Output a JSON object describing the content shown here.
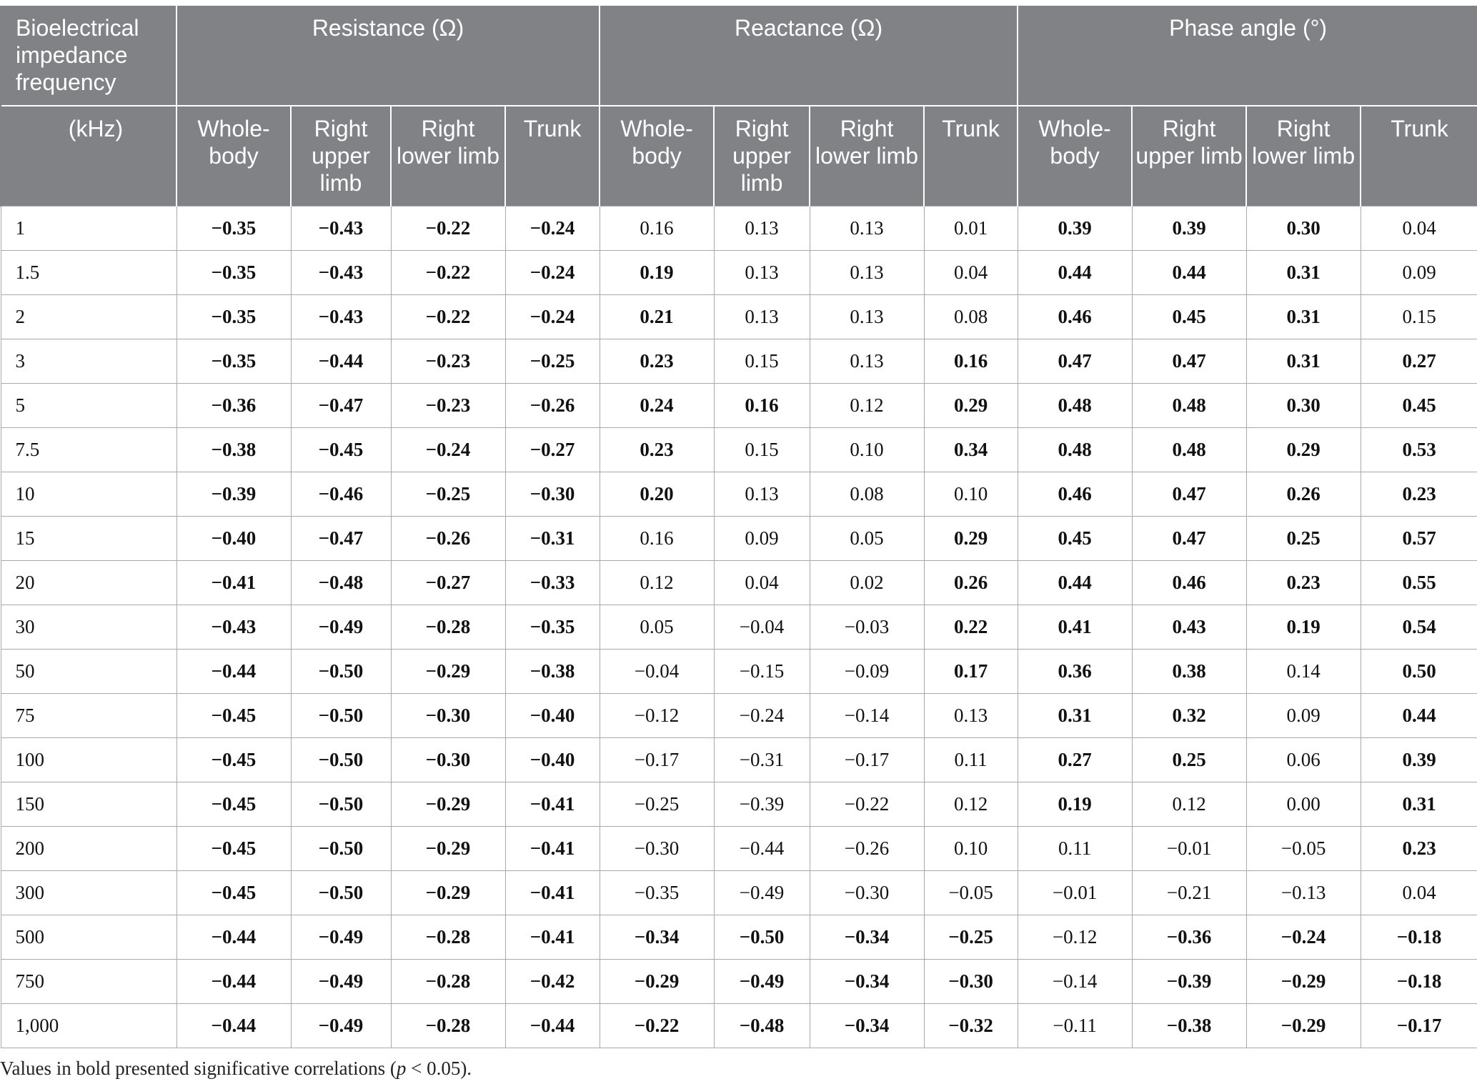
{
  "header": {
    "row_label": "Bioelectrical impedance frequency",
    "unit_label": "(kHz)",
    "groups": [
      "Resistance (Ω)",
      "Reactance (Ω)",
      "Phase angle (°)"
    ],
    "subcolumns": [
      "Whole-body",
      "Right upper limb",
      "Right lower limb",
      "Trunk"
    ]
  },
  "rows": [
    {
      "freq": "1",
      "values": [
        "−0.35",
        "−0.43",
        "−0.22",
        "−0.24",
        "0.16",
        "0.13",
        "0.13",
        "0.01",
        "0.39",
        "0.39",
        "0.30",
        "0.04"
      ],
      "bold": [
        1,
        1,
        1,
        1,
        0,
        0,
        0,
        0,
        1,
        1,
        1,
        0
      ]
    },
    {
      "freq": "1.5",
      "values": [
        "−0.35",
        "−0.43",
        "−0.22",
        "−0.24",
        "0.19",
        "0.13",
        "0.13",
        "0.04",
        "0.44",
        "0.44",
        "0.31",
        "0.09"
      ],
      "bold": [
        1,
        1,
        1,
        1,
        1,
        0,
        0,
        0,
        1,
        1,
        1,
        0
      ]
    },
    {
      "freq": "2",
      "values": [
        "−0.35",
        "−0.43",
        "−0.22",
        "−0.24",
        "0.21",
        "0.13",
        "0.13",
        "0.08",
        "0.46",
        "0.45",
        "0.31",
        "0.15"
      ],
      "bold": [
        1,
        1,
        1,
        1,
        1,
        0,
        0,
        0,
        1,
        1,
        1,
        0
      ]
    },
    {
      "freq": "3",
      "values": [
        "−0.35",
        "−0.44",
        "−0.23",
        "−0.25",
        "0.23",
        "0.15",
        "0.13",
        "0.16",
        "0.47",
        "0.47",
        "0.31",
        "0.27"
      ],
      "bold": [
        1,
        1,
        1,
        1,
        1,
        0,
        0,
        1,
        1,
        1,
        1,
        1
      ]
    },
    {
      "freq": "5",
      "values": [
        "−0.36",
        "−0.47",
        "−0.23",
        "−0.26",
        "0.24",
        "0.16",
        "0.12",
        "0.29",
        "0.48",
        "0.48",
        "0.30",
        "0.45"
      ],
      "bold": [
        1,
        1,
        1,
        1,
        1,
        1,
        0,
        1,
        1,
        1,
        1,
        1
      ]
    },
    {
      "freq": "7.5",
      "values": [
        "−0.38",
        "−0.45",
        "−0.24",
        "−0.27",
        "0.23",
        "0.15",
        "0.10",
        "0.34",
        "0.48",
        "0.48",
        "0.29",
        "0.53"
      ],
      "bold": [
        1,
        1,
        1,
        1,
        1,
        0,
        0,
        1,
        1,
        1,
        1,
        1
      ]
    },
    {
      "freq": "10",
      "values": [
        "−0.39",
        "−0.46",
        "−0.25",
        "−0.30",
        "0.20",
        "0.13",
        "0.08",
        "0.10",
        "0.46",
        "0.47",
        "0.26",
        "0.23"
      ],
      "bold": [
        1,
        1,
        1,
        1,
        1,
        0,
        0,
        0,
        1,
        1,
        1,
        1
      ]
    },
    {
      "freq": "15",
      "values": [
        "−0.40",
        "−0.47",
        "−0.26",
        "−0.31",
        "0.16",
        "0.09",
        "0.05",
        "0.29",
        "0.45",
        "0.47",
        "0.25",
        "0.57"
      ],
      "bold": [
        1,
        1,
        1,
        1,
        0,
        0,
        0,
        1,
        1,
        1,
        1,
        1
      ]
    },
    {
      "freq": "20",
      "values": [
        "−0.41",
        "−0.48",
        "−0.27",
        "−0.33",
        "0.12",
        "0.04",
        "0.02",
        "0.26",
        "0.44",
        "0.46",
        "0.23",
        "0.55"
      ],
      "bold": [
        1,
        1,
        1,
        1,
        0,
        0,
        0,
        1,
        1,
        1,
        1,
        1
      ]
    },
    {
      "freq": "30",
      "values": [
        "−0.43",
        "−0.49",
        "−0.28",
        "−0.35",
        "0.05",
        "−0.04",
        "−0.03",
        "0.22",
        "0.41",
        "0.43",
        "0.19",
        "0.54"
      ],
      "bold": [
        1,
        1,
        1,
        1,
        0,
        0,
        0,
        1,
        1,
        1,
        1,
        1
      ]
    },
    {
      "freq": "50",
      "values": [
        "−0.44",
        "−0.50",
        "−0.29",
        "−0.38",
        "−0.04",
        "−0.15",
        "−0.09",
        "0.17",
        "0.36",
        "0.38",
        "0.14",
        "0.50"
      ],
      "bold": [
        1,
        1,
        1,
        1,
        0,
        0,
        0,
        1,
        1,
        1,
        0,
        1
      ]
    },
    {
      "freq": "75",
      "values": [
        "−0.45",
        "−0.50",
        "−0.30",
        "−0.40",
        "−0.12",
        "−0.24",
        "−0.14",
        "0.13",
        "0.31",
        "0.32",
        "0.09",
        "0.44"
      ],
      "bold": [
        1,
        1,
        1,
        1,
        0,
        0,
        0,
        0,
        1,
        1,
        0,
        1
      ]
    },
    {
      "freq": "100",
      "values": [
        "−0.45",
        "−0.50",
        "−0.30",
        "−0.40",
        "−0.17",
        "−0.31",
        "−0.17",
        "0.11",
        "0.27",
        "0.25",
        "0.06",
        "0.39"
      ],
      "bold": [
        1,
        1,
        1,
        1,
        0,
        0,
        0,
        0,
        1,
        1,
        0,
        1
      ]
    },
    {
      "freq": "150",
      "values": [
        "−0.45",
        "−0.50",
        "−0.29",
        "−0.41",
        "−0.25",
        "−0.39",
        "−0.22",
        "0.12",
        "0.19",
        "0.12",
        "0.00",
        "0.31"
      ],
      "bold": [
        1,
        1,
        1,
        1,
        0,
        0,
        0,
        0,
        1,
        0,
        0,
        1
      ]
    },
    {
      "freq": "200",
      "values": [
        "−0.45",
        "−0.50",
        "−0.29",
        "−0.41",
        "−0.30",
        "−0.44",
        "−0.26",
        "0.10",
        "0.11",
        "−0.01",
        "−0.05",
        "0.23"
      ],
      "bold": [
        1,
        1,
        1,
        1,
        0,
        0,
        0,
        0,
        0,
        0,
        0,
        1
      ]
    },
    {
      "freq": "300",
      "values": [
        "−0.45",
        "−0.50",
        "−0.29",
        "−0.41",
        "−0.35",
        "−0.49",
        "−0.30",
        "−0.05",
        "−0.01",
        "−0.21",
        "−0.13",
        "0.04"
      ],
      "bold": [
        1,
        1,
        1,
        1,
        0,
        0,
        0,
        0,
        0,
        0,
        0,
        0
      ]
    },
    {
      "freq": "500",
      "values": [
        "−0.44",
        "−0.49",
        "−0.28",
        "−0.41",
        "−0.34",
        "−0.50",
        "−0.34",
        "−0.25",
        "−0.12",
        "−0.36",
        "−0.24",
        "−0.18"
      ],
      "bold": [
        1,
        1,
        1,
        1,
        1,
        1,
        1,
        1,
        0,
        1,
        1,
        1
      ]
    },
    {
      "freq": "750",
      "values": [
        "−0.44",
        "−0.49",
        "−0.28",
        "−0.42",
        "−0.29",
        "−0.49",
        "−0.34",
        "−0.30",
        "−0.14",
        "−0.39",
        "−0.29",
        "−0.18"
      ],
      "bold": [
        1,
        1,
        1,
        1,
        1,
        1,
        1,
        1,
        0,
        1,
        1,
        1
      ]
    },
    {
      "freq": "1,000",
      "values": [
        "−0.44",
        "−0.49",
        "−0.28",
        "−0.44",
        "−0.22",
        "−0.48",
        "−0.34",
        "−0.32",
        "−0.11",
        "−0.38",
        "−0.29",
        "−0.17"
      ],
      "bold": [
        1,
        1,
        1,
        1,
        1,
        1,
        1,
        1,
        0,
        1,
        1,
        1
      ]
    }
  ],
  "footnote": {
    "before": "Values in bold presented significative correlations (",
    "italic": "p",
    "after": " < 0.05)."
  },
  "colors": {
    "header_bg": "#808285",
    "header_text": "#ffffff",
    "grid": "#a7a9ab"
  }
}
